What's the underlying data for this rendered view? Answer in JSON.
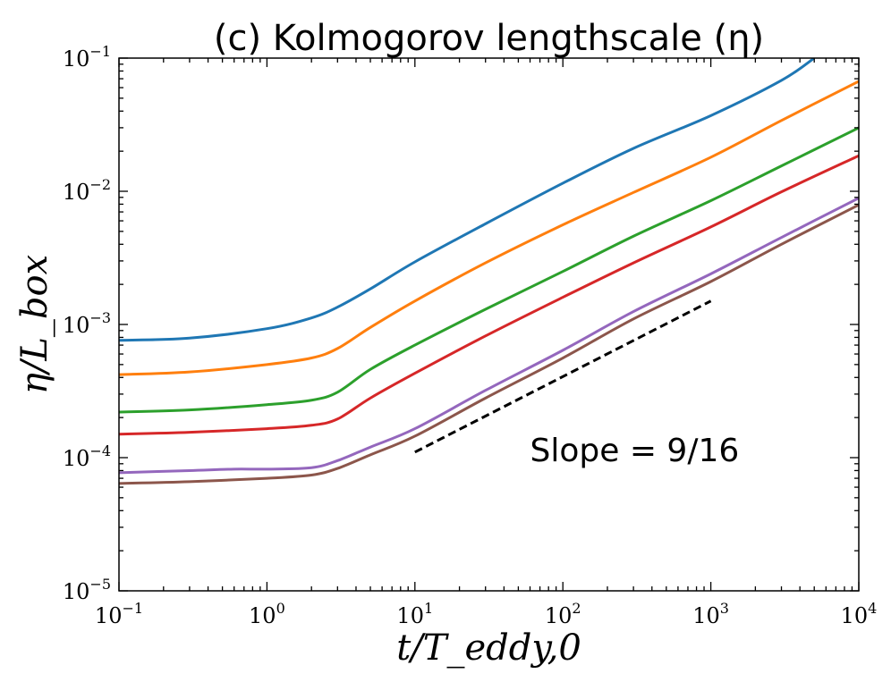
{
  "chart_data": {
    "type": "line",
    "title": "(c) Kolmogorov lengthscale (η)",
    "xlabel": "t/T_eddy,0",
    "ylabel": "η/L_box",
    "x_scale": "log",
    "y_scale": "log",
    "xlim": [
      0.1,
      10000
    ],
    "ylim": [
      1e-05,
      0.1
    ],
    "grid": false,
    "x_ticks": [
      {
        "value": 0.1,
        "base": "10",
        "exp": "−1"
      },
      {
        "value": 1,
        "base": "10",
        "exp": "0"
      },
      {
        "value": 10,
        "base": "10",
        "exp": "1"
      },
      {
        "value": 100,
        "base": "10",
        "exp": "2"
      },
      {
        "value": 1000,
        "base": "10",
        "exp": "3"
      },
      {
        "value": 10000,
        "base": "10",
        "exp": "4"
      }
    ],
    "y_ticks": [
      {
        "value": 1e-05,
        "base": "10",
        "exp": "−5"
      },
      {
        "value": 0.0001,
        "base": "10",
        "exp": "−4"
      },
      {
        "value": 0.001,
        "base": "10",
        "exp": "−3"
      },
      {
        "value": 0.01,
        "base": "10",
        "exp": "−2"
      },
      {
        "value": 0.1,
        "base": "10",
        "exp": "−1"
      }
    ],
    "series": [
      {
        "color": "#1f77b4",
        "points": [
          [
            0.1,
            0.00076
          ],
          [
            0.3,
            0.00079
          ],
          [
            1,
            0.00093
          ],
          [
            2,
            0.00112
          ],
          [
            3,
            0.00135
          ],
          [
            5,
            0.00185
          ],
          [
            10,
            0.00295
          ],
          [
            30,
            0.0057
          ],
          [
            100,
            0.0115
          ],
          [
            300,
            0.021
          ],
          [
            1000,
            0.037
          ],
          [
            3000,
            0.068
          ],
          [
            5000,
            0.1
          ]
        ]
      },
      {
        "color": "#ff7f0e",
        "points": [
          [
            0.1,
            0.00042
          ],
          [
            0.3,
            0.00044
          ],
          [
            1,
            0.0005
          ],
          [
            2,
            0.00056
          ],
          [
            3,
            0.00066
          ],
          [
            5,
            0.00095
          ],
          [
            10,
            0.0015
          ],
          [
            30,
            0.0029
          ],
          [
            100,
            0.0056
          ],
          [
            300,
            0.0098
          ],
          [
            1000,
            0.018
          ],
          [
            3000,
            0.034
          ],
          [
            10000,
            0.067
          ]
        ]
      },
      {
        "color": "#2ca02c",
        "points": [
          [
            0.1,
            0.00022
          ],
          [
            0.3,
            0.000228
          ],
          [
            1,
            0.00025
          ],
          [
            2,
            0.00027
          ],
          [
            3,
            0.00031
          ],
          [
            5,
            0.00046
          ],
          [
            10,
            0.0007
          ],
          [
            30,
            0.0013
          ],
          [
            100,
            0.0025
          ],
          [
            300,
            0.0046
          ],
          [
            1000,
            0.0085
          ],
          [
            3000,
            0.0155
          ],
          [
            10000,
            0.03
          ]
        ]
      },
      {
        "color": "#d62728",
        "points": [
          [
            0.1,
            0.00015
          ],
          [
            0.3,
            0.000155
          ],
          [
            1,
            0.000165
          ],
          [
            2,
            0.000175
          ],
          [
            3,
            0.000195
          ],
          [
            5,
            0.00028
          ],
          [
            10,
            0.00043
          ],
          [
            30,
            0.00082
          ],
          [
            100,
            0.0016
          ],
          [
            300,
            0.0029
          ],
          [
            1000,
            0.0054
          ],
          [
            3000,
            0.0099
          ],
          [
            10000,
            0.0185
          ]
        ]
      },
      {
        "color": "#9467bd",
        "points": [
          [
            0.1,
            7.7e-05
          ],
          [
            0.3,
            8e-05
          ],
          [
            0.6,
            8.2e-05
          ],
          [
            1,
            8.2e-05
          ],
          [
            2,
            8.4e-05
          ],
          [
            3,
            9.5e-05
          ],
          [
            5,
            0.00012
          ],
          [
            10,
            0.000165
          ],
          [
            30,
            0.00032
          ],
          [
            100,
            0.00064
          ],
          [
            300,
            0.00125
          ],
          [
            1000,
            0.0024
          ],
          [
            3000,
            0.0045
          ],
          [
            10000,
            0.0089
          ]
        ]
      },
      {
        "color": "#8c564b",
        "points": [
          [
            0.1,
            6.4e-05
          ],
          [
            0.3,
            6.6e-05
          ],
          [
            1,
            7e-05
          ],
          [
            2,
            7.4e-05
          ],
          [
            3,
            8.3e-05
          ],
          [
            5,
            0.000105
          ],
          [
            10,
            0.000145
          ],
          [
            30,
            0.00028
          ],
          [
            100,
            0.00056
          ],
          [
            300,
            0.0011
          ],
          [
            1000,
            0.0021
          ],
          [
            3000,
            0.004
          ],
          [
            10000,
            0.0079
          ]
        ]
      }
    ],
    "reference_line": {
      "style": "dashed",
      "color": "#000000",
      "points": [
        [
          10,
          0.00011
        ],
        [
          1000,
          0.0015
        ]
      ]
    },
    "annotation": {
      "text": "Slope = 9/16",
      "x": 60,
      "y": 0.00011
    }
  }
}
